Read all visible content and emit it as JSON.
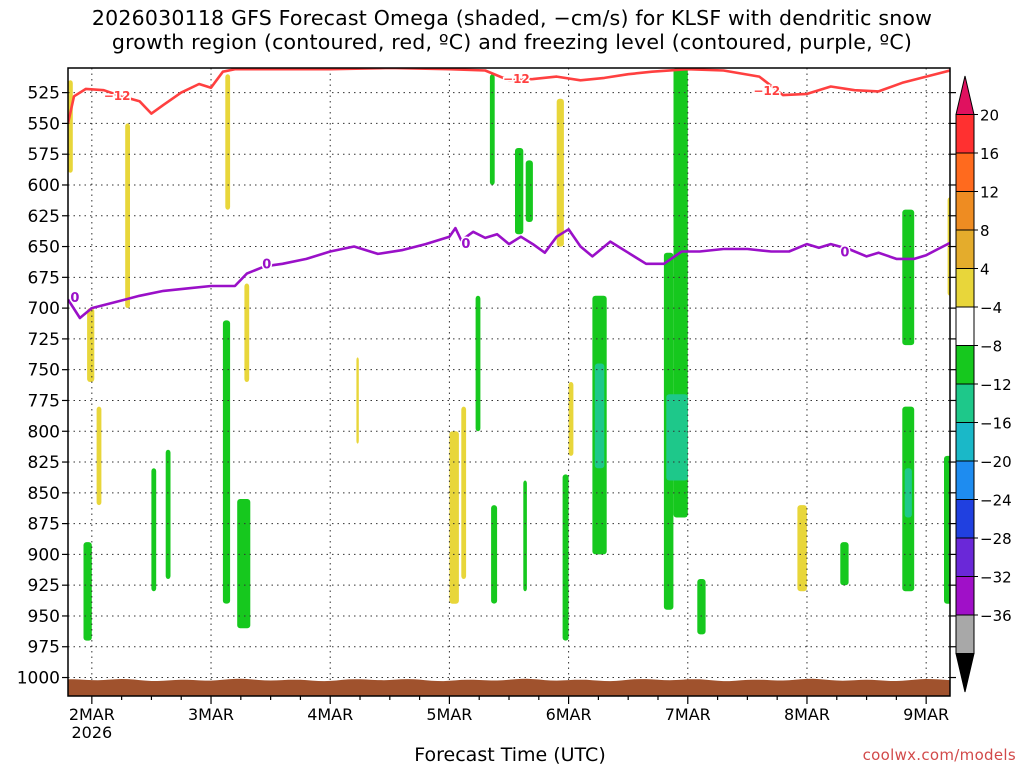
{
  "title_line1": "2026030118 GFS Forecast Omega (shaded, −cm/s) for KLSF with dendritic snow",
  "title_line2": "growth region (contoured, red, ºC) and freezing level (contoured, purple, ºC)",
  "xlabel": "Forecast Time (UTC)",
  "credit": "coolwx.com/models",
  "chart_data": {
    "type": "heatmap",
    "x_axis": {
      "ticks": [
        "2MAR",
        "3MAR",
        "4MAR",
        "5MAR",
        "6MAR",
        "7MAR",
        "8MAR",
        "9MAR"
      ],
      "year_label": "2026",
      "range_days": [
        1.8,
        9.2
      ]
    },
    "y_axis": {
      "ticks": [
        525,
        550,
        575,
        600,
        625,
        650,
        675,
        700,
        725,
        750,
        775,
        800,
        825,
        850,
        875,
        900,
        925,
        950,
        975,
        1000
      ],
      "range_hPa": [
        505,
        1015
      ],
      "grid": true
    },
    "colorbar": {
      "labels": [
        "20",
        "16",
        "12",
        "8",
        "4",
        "−4",
        "−8",
        "−12",
        "−16",
        "−20",
        "−24",
        "−28",
        "−32",
        "−36"
      ],
      "colors": [
        "#e0115f",
        "#ff3030",
        "#ff6a1e",
        "#ee8c22",
        "#e4ac2c",
        "#e8d63a",
        "#ffffff",
        "#16c81e",
        "#1ec88a",
        "#1ab8c8",
        "#1e8cf0",
        "#2040e0",
        "#6a28d8",
        "#a010c8",
        "#a8a8a8",
        "#000000"
      ]
    },
    "contours": [
      {
        "name": "dendritic snow growth region",
        "color": "#ff4040",
        "label": "−12",
        "points": [
          [
            1.8,
            550
          ],
          [
            1.85,
            528
          ],
          [
            1.95,
            522
          ],
          [
            2.1,
            523
          ],
          [
            2.25,
            528
          ],
          [
            2.4,
            532
          ],
          [
            2.5,
            542
          ],
          [
            2.6,
            535
          ],
          [
            2.75,
            525
          ],
          [
            2.9,
            518
          ],
          [
            3.0,
            521
          ],
          [
            3.1,
            508
          ],
          [
            3.2,
            506
          ],
          [
            3.5,
            506
          ],
          [
            4.0,
            506
          ],
          [
            4.5,
            505
          ],
          [
            5.0,
            506
          ],
          [
            5.3,
            507
          ],
          [
            5.5,
            515
          ],
          [
            5.7,
            514
          ],
          [
            5.9,
            512
          ],
          [
            6.1,
            515
          ],
          [
            6.3,
            513
          ],
          [
            6.5,
            510
          ],
          [
            6.7,
            508
          ],
          [
            7.0,
            506
          ],
          [
            7.3,
            507
          ],
          [
            7.6,
            512
          ],
          [
            7.8,
            527
          ],
          [
            8.0,
            526
          ],
          [
            8.2,
            520
          ],
          [
            8.4,
            523
          ],
          [
            8.6,
            524
          ],
          [
            8.8,
            517
          ],
          [
            9.0,
            512
          ],
          [
            9.2,
            507
          ]
        ]
      },
      {
        "name": "freezing level",
        "color": "#9a10c8",
        "label": "0",
        "points": [
          [
            1.8,
            693
          ],
          [
            1.9,
            708
          ],
          [
            2.0,
            700
          ],
          [
            2.2,
            695
          ],
          [
            2.4,
            690
          ],
          [
            2.6,
            686
          ],
          [
            2.8,
            684
          ],
          [
            3.0,
            682
          ],
          [
            3.2,
            682
          ],
          [
            3.3,
            672
          ],
          [
            3.45,
            666
          ],
          [
            3.6,
            664
          ],
          [
            3.8,
            660
          ],
          [
            4.0,
            654
          ],
          [
            4.2,
            650
          ],
          [
            4.4,
            656
          ],
          [
            4.6,
            653
          ],
          [
            4.8,
            648
          ],
          [
            5.0,
            642
          ],
          [
            5.05,
            635
          ],
          [
            5.1,
            645
          ],
          [
            5.2,
            638
          ],
          [
            5.3,
            643
          ],
          [
            5.4,
            640
          ],
          [
            5.5,
            648
          ],
          [
            5.6,
            642
          ],
          [
            5.7,
            648
          ],
          [
            5.8,
            655
          ],
          [
            5.9,
            642
          ],
          [
            6.0,
            636
          ],
          [
            6.1,
            650
          ],
          [
            6.2,
            658
          ],
          [
            6.35,
            646
          ],
          [
            6.5,
            655
          ],
          [
            6.65,
            664
          ],
          [
            6.8,
            664
          ],
          [
            6.95,
            654
          ],
          [
            7.1,
            654
          ],
          [
            7.3,
            652
          ],
          [
            7.5,
            652
          ],
          [
            7.7,
            654
          ],
          [
            7.85,
            654
          ],
          [
            8.0,
            648
          ],
          [
            8.1,
            651
          ],
          [
            8.2,
            648
          ],
          [
            8.35,
            652
          ],
          [
            8.5,
            658
          ],
          [
            8.6,
            655
          ],
          [
            8.75,
            660
          ],
          [
            8.9,
            660
          ],
          [
            9.0,
            657
          ],
          [
            9.1,
            652
          ],
          [
            9.2,
            647
          ]
        ]
      }
    ],
    "omega_regions": [
      {
        "level": "-4",
        "color": "#16c81e",
        "x": [
          6.8,
          6.88
        ],
        "p": [
          655,
          945
        ]
      },
      {
        "level": "-4",
        "color": "#16c81e",
        "x": [
          6.88,
          7.0
        ],
        "p": [
          505,
          870
        ]
      },
      {
        "level": "-8",
        "color": "#1ec88a",
        "x": [
          6.82,
          7.0
        ],
        "p": [
          770,
          840
        ]
      },
      {
        "level": "-4",
        "color": "#16c81e",
        "x": [
          6.2,
          6.32
        ],
        "p": [
          690,
          900
        ]
      },
      {
        "level": "-8",
        "color": "#1ec88a",
        "x": [
          6.22,
          6.3
        ],
        "p": [
          745,
          830
        ]
      },
      {
        "level": "-4",
        "color": "#16c81e",
        "x": [
          5.55,
          5.62
        ],
        "p": [
          570,
          640
        ]
      },
      {
        "level": "-4",
        "color": "#16c81e",
        "x": [
          5.64,
          5.7
        ],
        "p": [
          580,
          630
        ]
      },
      {
        "level": "-4",
        "color": "#16c81e",
        "x": [
          5.34,
          5.38
        ],
        "p": [
          510,
          600
        ]
      },
      {
        "level": "-4",
        "color": "#16c81e",
        "x": [
          8.8,
          8.9
        ],
        "p": [
          620,
          730
        ]
      },
      {
        "level": "-4",
        "color": "#16c81e",
        "x": [
          8.8,
          8.9
        ],
        "p": [
          780,
          930
        ]
      },
      {
        "level": "-8",
        "color": "#1ec88a",
        "x": [
          8.82,
          8.88
        ],
        "p": [
          830,
          870
        ]
      },
      {
        "level": "-4",
        "color": "#16c81e",
        "x": [
          9.15,
          9.22
        ],
        "p": [
          820,
          940
        ]
      },
      {
        "level": "-4",
        "color": "#16c81e",
        "x": [
          7.08,
          7.15
        ],
        "p": [
          920,
          965
        ]
      },
      {
        "level": "-4",
        "color": "#16c81e",
        "x": [
          8.28,
          8.35
        ],
        "p": [
          890,
          925
        ]
      },
      {
        "level": "-4",
        "color": "#16c81e",
        "x": [
          3.22,
          3.33
        ],
        "p": [
          855,
          960
        ]
      },
      {
        "level": "-4",
        "color": "#16c81e",
        "x": [
          3.1,
          3.16
        ],
        "p": [
          710,
          940
        ]
      },
      {
        "level": "-4",
        "color": "#16c81e",
        "x": [
          1.93,
          2.0
        ],
        "p": [
          890,
          970
        ]
      },
      {
        "level": "-4",
        "color": "#16c81e",
        "x": [
          2.5,
          2.54
        ],
        "p": [
          830,
          930
        ]
      },
      {
        "level": "-4",
        "color": "#16c81e",
        "x": [
          2.62,
          2.66
        ],
        "p": [
          815,
          920
        ]
      },
      {
        "level": "-4",
        "color": "#16c81e",
        "x": [
          5.22,
          5.26
        ],
        "p": [
          690,
          800
        ]
      },
      {
        "level": "-4",
        "color": "#16c81e",
        "x": [
          5.35,
          5.4
        ],
        "p": [
          860,
          940
        ]
      },
      {
        "level": "-4",
        "color": "#16c81e",
        "x": [
          5.95,
          6.0
        ],
        "p": [
          835,
          970
        ]
      },
      {
        "level": "-4",
        "color": "#16c81e",
        "x": [
          5.62,
          5.65
        ],
        "p": [
          840,
          930
        ]
      },
      {
        "level": "4",
        "color": "#e8d63a",
        "x": [
          1.8,
          1.84
        ],
        "p": [
          515,
          590
        ]
      },
      {
        "level": "4",
        "color": "#e8d63a",
        "x": [
          1.96,
          2.02
        ],
        "p": [
          700,
          760
        ]
      },
      {
        "level": "4",
        "color": "#e8d63a",
        "x": [
          2.04,
          2.08
        ],
        "p": [
          780,
          860
        ]
      },
      {
        "level": "4",
        "color": "#e8d63a",
        "x": [
          2.28,
          2.32
        ],
        "p": [
          550,
          700
        ]
      },
      {
        "level": "4",
        "color": "#e8d63a",
        "x": [
          3.12,
          3.16
        ],
        "p": [
          510,
          620
        ]
      },
      {
        "level": "4",
        "color": "#e8d63a",
        "x": [
          3.28,
          3.32
        ],
        "p": [
          680,
          760
        ]
      },
      {
        "level": "4",
        "color": "#e8d63a",
        "x": [
          5.0,
          5.08
        ],
        "p": [
          800,
          940
        ]
      },
      {
        "level": "4",
        "color": "#e8d63a",
        "x": [
          5.1,
          5.14
        ],
        "p": [
          780,
          920
        ]
      },
      {
        "level": "4",
        "color": "#e8d63a",
        "x": [
          5.9,
          5.96
        ],
        "p": [
          530,
          650
        ]
      },
      {
        "level": "4",
        "color": "#e8d63a",
        "x": [
          6.0,
          6.04
        ],
        "p": [
          760,
          820
        ]
      },
      {
        "level": "4",
        "color": "#e8d63a",
        "x": [
          7.92,
          8.0
        ],
        "p": [
          860,
          930
        ]
      },
      {
        "level": "4",
        "color": "#e8d63a",
        "x": [
          9.18,
          9.22
        ],
        "p": [
          610,
          690
        ]
      },
      {
        "level": "4",
        "color": "#e8d63a",
        "x": [
          4.22,
          4.24
        ],
        "p": [
          740,
          810
        ]
      }
    ],
    "terrain": {
      "color": "#a0522d",
      "surface_hPa": 1002
    }
  }
}
